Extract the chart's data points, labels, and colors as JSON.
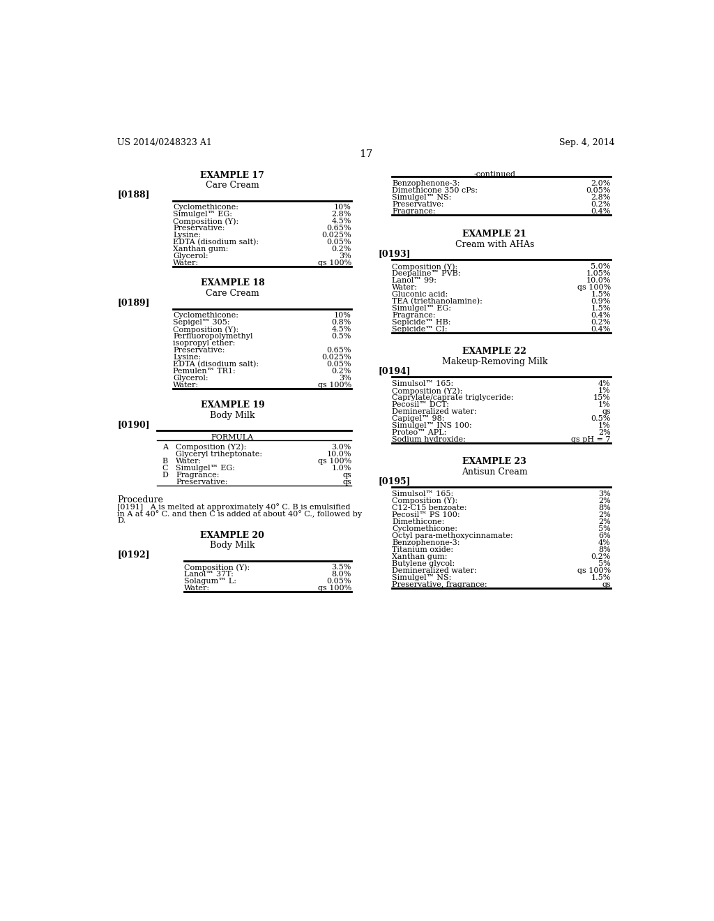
{
  "bg_color": "#ffffff",
  "header_left": "US 2014/0248323 A1",
  "header_right": "Sep. 4, 2014",
  "page_number": "17",
  "left_col": {
    "ex17_title": "EXAMPLE 17",
    "ex17_sub": "Care Cream",
    "ex17_label": "[0188]",
    "ex17_rows": [
      [
        "Cyclomethicone:",
        "10%"
      ],
      [
        "Simulgel™ EG:",
        "2.8%"
      ],
      [
        "Composition (Y):",
        "4.5%"
      ],
      [
        "Preservative:",
        "0.65%"
      ],
      [
        "Lysine:",
        "0.025%"
      ],
      [
        "EDTA (disodium salt):",
        "0.05%"
      ],
      [
        "Xanthan gum:",
        "0.2%"
      ],
      [
        "Glycerol:",
        "3%"
      ],
      [
        "Water:",
        "qs 100%"
      ]
    ],
    "ex18_title": "EXAMPLE 18",
    "ex18_sub": "Care Cream",
    "ex18_label": "[0189]",
    "ex18_rows": [
      [
        "Cyclomethicone:",
        "10%"
      ],
      [
        "Sepigel™ 305:",
        "0.8%"
      ],
      [
        "Composition (Y):",
        "4.5%"
      ],
      [
        "Perfluoropolymethyl",
        "0.5%"
      ],
      [
        "isopropyl ether:",
        ""
      ],
      [
        "Preservative:",
        "0.65%"
      ],
      [
        "Lysine:",
        "0.025%"
      ],
      [
        "EDTA (disodium salt):",
        "0.05%"
      ],
      [
        "Pemulen™ TR1:",
        "0.2%"
      ],
      [
        "Glycerol:",
        "3%"
      ],
      [
        "Water:",
        "qs 100%"
      ]
    ],
    "ex19_title": "EXAMPLE 19",
    "ex19_sub": "Body Milk",
    "ex19_label": "[0190]",
    "ex19_formula_header": "FORMULA",
    "ex19_rows": [
      [
        "A",
        "Composition (Y2):",
        "3.0%"
      ],
      [
        "",
        "Glyceryl triheptonate:",
        "10.0%"
      ],
      [
        "B",
        "Water:",
        "qs 100%"
      ],
      [
        "C",
        "Simulgel™ EG:",
        "1.0%"
      ],
      [
        "D",
        "Fragrance:",
        "qs"
      ],
      [
        "",
        "Preservative:",
        "qs"
      ]
    ],
    "procedure_heading": "Procedure",
    "procedure_lines": [
      "[0191]   A is melted at approximately 40° C. B is emulsified",
      "in A at 40° C. and then C is added at about 40° C., followed by",
      "D."
    ],
    "ex20_title": "EXAMPLE 20",
    "ex20_sub": "Body Milk",
    "ex20_label": "[0192]",
    "ex20_rows": [
      [
        "Composition (Y):",
        "3.5%"
      ],
      [
        "Lanol™ 37T:",
        "8.0%"
      ],
      [
        "Solagum™ L:",
        "0.05%"
      ],
      [
        "Water:",
        "qs 100%"
      ]
    ]
  },
  "right_col": {
    "continued_heading": "-continued",
    "cont_rows": [
      [
        "Benzophenone-3:",
        "2.0%"
      ],
      [
        "Dimethicone 350 cPs:",
        "0.05%"
      ],
      [
        "Simulgel™ NS:",
        "2.8%"
      ],
      [
        "Preservative:",
        "0.2%"
      ],
      [
        "Fragrance:",
        "0.4%"
      ]
    ],
    "ex21_title": "EXAMPLE 21",
    "ex21_sub": "Cream with AHAs",
    "ex21_label": "[0193]",
    "ex21_rows": [
      [
        "Composition (Y):",
        "5.0%"
      ],
      [
        "Deepaline™ PVB:",
        "1.05%"
      ],
      [
        "Lanol™ 99:",
        "10.0%"
      ],
      [
        "Water:",
        "qs 100%"
      ],
      [
        "Gluconic acid:",
        "1.5%"
      ],
      [
        "TEA (triethanolamine):",
        "0.9%"
      ],
      [
        "Simulgel™ EG:",
        "1.5%"
      ],
      [
        "Fragrance:",
        "0.4%"
      ],
      [
        "Sepicide™ HB:",
        "0.2%"
      ],
      [
        "Sepicide™ CI:",
        "0.4%"
      ]
    ],
    "ex22_title": "EXAMPLE 22",
    "ex22_sub": "Makeup-Removing Milk",
    "ex22_label": "[0194]",
    "ex22_rows": [
      [
        "Simulsol™ 165:",
        "4%"
      ],
      [
        "Composition (Y2):",
        "1%"
      ],
      [
        "Caprylate/caprate triglyceride:",
        "15%"
      ],
      [
        "Pecosil™ DCT:",
        "1%"
      ],
      [
        "Demineralized water:",
        "qs"
      ],
      [
        "Capigel™ 98:",
        "0.5%"
      ],
      [
        "Simulgel™ INS 100:",
        "1%"
      ],
      [
        "Proteo™ APL:",
        "2%"
      ],
      [
        "Sodium hydroxide:",
        "qs pH = 7"
      ]
    ],
    "ex23_title": "EXAMPLE 23",
    "ex23_sub": "Antisun Cream",
    "ex23_label": "[0195]",
    "ex23_rows": [
      [
        "Simulsol™ 165:",
        "3%"
      ],
      [
        "Composition (Y):",
        "2%"
      ],
      [
        "C12-C15 benzoate:",
        "8%"
      ],
      [
        "Pecosil™ PS 100:",
        "2%"
      ],
      [
        "Dimethicone:",
        "2%"
      ],
      [
        "Cyclomethicone:",
        "5%"
      ],
      [
        "Octyl para-methoxycinnamate:",
        "6%"
      ],
      [
        "Benzophenone-3:",
        "4%"
      ],
      [
        "Titanium oxide:",
        "8%"
      ],
      [
        "Xanthan gum:",
        "0.2%"
      ],
      [
        "Butylene glycol:",
        "5%"
      ],
      [
        "Demineralized water:",
        "qs 100%"
      ],
      [
        "Simulgel™ NS:",
        "1.5%"
      ],
      [
        "Preservative, fragrance:",
        "qs"
      ]
    ]
  }
}
